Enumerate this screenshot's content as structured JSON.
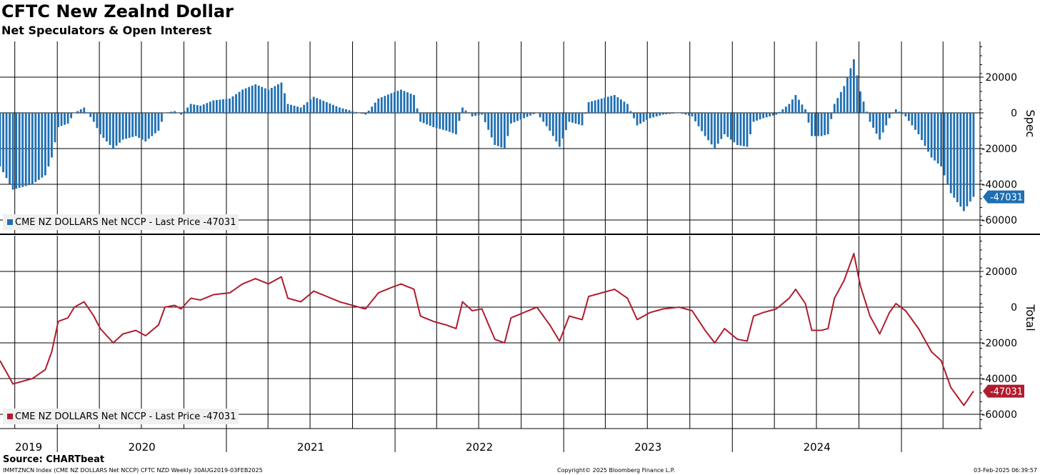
{
  "title": "CFTC New Zealnd Dollar",
  "subtitle": "Net Speculators & Open Interest",
  "source": "Source: CHARTbeat",
  "footer": {
    "left": "IMMTZNCN Index (CME NZ DOLLARS Net NCCP) CFTC NZD  Weekly 30AUG2019-03FEB2025",
    "center": "Copyright© 2025 Bloomberg Finance L.P.",
    "right": "03-Feb-2025 06:39:57"
  },
  "colors": {
    "bar": "#1f6fb2",
    "line": "#b01c2e",
    "grid": "#000000"
  },
  "chart_data": [
    {
      "type": "bar",
      "ylabel": "Spec",
      "legend": "CME NZ DOLLARS Net NCCP - Last Price -47031",
      "last_value_label": "-47031",
      "yticks": [
        20000,
        0,
        -20000,
        -40000,
        -60000
      ],
      "ylim": [
        -68000,
        40000
      ],
      "grid": true,
      "anchors": [
        [
          "2019-08-30",
          -30000
        ],
        [
          "2019-09-27",
          -43000
        ],
        [
          "2019-11-08",
          -40000
        ],
        [
          "2019-12-06",
          -35000
        ],
        [
          "2019-12-20",
          -25000
        ],
        [
          "2020-01-03",
          -8000
        ],
        [
          "2020-01-24",
          -6000
        ],
        [
          "2020-02-07",
          0
        ],
        [
          "2020-02-28",
          3000
        ],
        [
          "2020-03-20",
          -5000
        ],
        [
          "2020-04-03",
          -12000
        ],
        [
          "2020-05-01",
          -20000
        ],
        [
          "2020-05-22",
          -15000
        ],
        [
          "2020-06-19",
          -13000
        ],
        [
          "2020-07-10",
          -16000
        ],
        [
          "2020-08-07",
          -10000
        ],
        [
          "2020-08-21",
          0
        ],
        [
          "2020-09-11",
          1000
        ],
        [
          "2020-09-25",
          -1000
        ],
        [
          "2020-10-16",
          5000
        ],
        [
          "2020-11-06",
          4000
        ],
        [
          "2020-12-04",
          7000
        ],
        [
          "2021-01-08",
          8000
        ],
        [
          "2021-02-05",
          13000
        ],
        [
          "2021-03-05",
          16000
        ],
        [
          "2021-04-02",
          13000
        ],
        [
          "2021-04-30",
          17000
        ],
        [
          "2021-05-14",
          5000
        ],
        [
          "2021-06-11",
          3000
        ],
        [
          "2021-07-09",
          9000
        ],
        [
          "2021-08-06",
          6000
        ],
        [
          "2021-09-03",
          3000
        ],
        [
          "2021-10-01",
          1000
        ],
        [
          "2021-10-29",
          -1000
        ],
        [
          "2021-11-26",
          8000
        ],
        [
          "2021-12-24",
          11000
        ],
        [
          "2022-01-14",
          13000
        ],
        [
          "2022-02-11",
          10000
        ],
        [
          "2022-02-25",
          -5000
        ],
        [
          "2022-03-25",
          -8000
        ],
        [
          "2022-04-22",
          -10000
        ],
        [
          "2022-05-13",
          -12000
        ],
        [
          "2022-05-27",
          3000
        ],
        [
          "2022-06-17",
          -2000
        ],
        [
          "2022-07-08",
          -1000
        ],
        [
          "2022-08-05",
          -18000
        ],
        [
          "2022-08-26",
          -20000
        ],
        [
          "2022-09-09",
          -6000
        ],
        [
          "2022-10-07",
          -3000
        ],
        [
          "2022-11-04",
          0
        ],
        [
          "2022-12-02",
          -10000
        ],
        [
          "2022-12-23",
          -19000
        ],
        [
          "2023-01-13",
          -5000
        ],
        [
          "2023-02-10",
          -7000
        ],
        [
          "2023-02-24",
          6000
        ],
        [
          "2023-03-24",
          8000
        ],
        [
          "2023-04-21",
          10000
        ],
        [
          "2023-05-19",
          5000
        ],
        [
          "2023-06-09",
          -7000
        ],
        [
          "2023-07-07",
          -3000
        ],
        [
          "2023-08-04",
          -1000
        ],
        [
          "2023-09-08",
          0
        ],
        [
          "2023-10-06",
          -2000
        ],
        [
          "2023-11-03",
          -13000
        ],
        [
          "2023-11-24",
          -20000
        ],
        [
          "2023-12-15",
          -12000
        ],
        [
          "2024-01-12",
          -18000
        ],
        [
          "2024-02-02",
          -19000
        ],
        [
          "2024-02-16",
          -5000
        ],
        [
          "2024-03-08",
          -3000
        ],
        [
          "2024-04-05",
          -1000
        ],
        [
          "2024-05-03",
          5000
        ],
        [
          "2024-05-17",
          10000
        ],
        [
          "2024-06-07",
          2000
        ],
        [
          "2024-06-21",
          -13000
        ],
        [
          "2024-07-12",
          -13000
        ],
        [
          "2024-07-26",
          -12000
        ],
        [
          "2024-08-09",
          5000
        ],
        [
          "2024-08-30",
          15000
        ],
        [
          "2024-09-20",
          30000
        ],
        [
          "2024-10-04",
          12000
        ],
        [
          "2024-10-25",
          -5000
        ],
        [
          "2024-11-15",
          -15000
        ],
        [
          "2024-12-06",
          -3000
        ],
        [
          "2024-12-20",
          2000
        ],
        [
          "2025-01-10",
          -2000
        ],
        [
          "2025-02-07",
          -12000
        ],
        [
          "2025-03-07",
          -25000
        ],
        [
          "2025-03-28",
          -30000
        ],
        [
          "2025-04-18",
          -45000
        ],
        [
          "2025-05-16",
          -55000
        ],
        [
          "2025-06-06",
          -47031
        ]
      ]
    },
    {
      "type": "line",
      "ylabel": "Total",
      "legend": "CME NZ DOLLARS Net NCCP - Last Price -47031",
      "last_value_label": "-47031",
      "yticks": [
        20000,
        0,
        -20000,
        -40000,
        -60000
      ],
      "ylim": [
        -68000,
        40000
      ],
      "grid": true
    }
  ],
  "x_axis": {
    "years": [
      "2019",
      "2020",
      "2021",
      "2022",
      "2023",
      "2024"
    ],
    "range": [
      "2019-08-30",
      "2025-06-20"
    ]
  }
}
